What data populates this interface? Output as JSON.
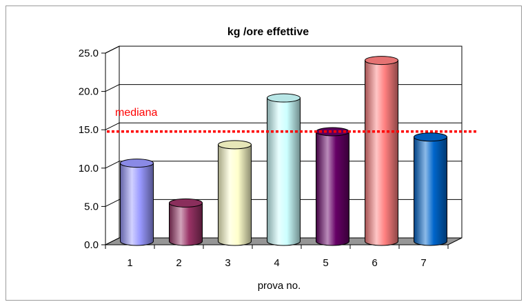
{
  "chart_data": {
    "type": "bar",
    "title": "kg /ore effettive",
    "xlabel": "prova no.",
    "ylabel": "",
    "categories": [
      "1",
      "2",
      "3",
      "4",
      "5",
      "6",
      "7"
    ],
    "values": [
      10.2,
      5.0,
      12.6,
      18.7,
      14.3,
      23.6,
      13.6
    ],
    "ylim": [
      0,
      25
    ],
    "yticks": [
      "0.0",
      "5.0",
      "10.0",
      "15.0",
      "20.0",
      "25.0"
    ],
    "grid": true,
    "legend": "none",
    "colors": [
      "#9999ff",
      "#993366",
      "#ffffcc",
      "#ccffff",
      "#660066",
      "#ff8080",
      "#0066cc"
    ],
    "reference_line": {
      "label": "mediana",
      "value": 13.6,
      "color": "#ff0000"
    }
  }
}
